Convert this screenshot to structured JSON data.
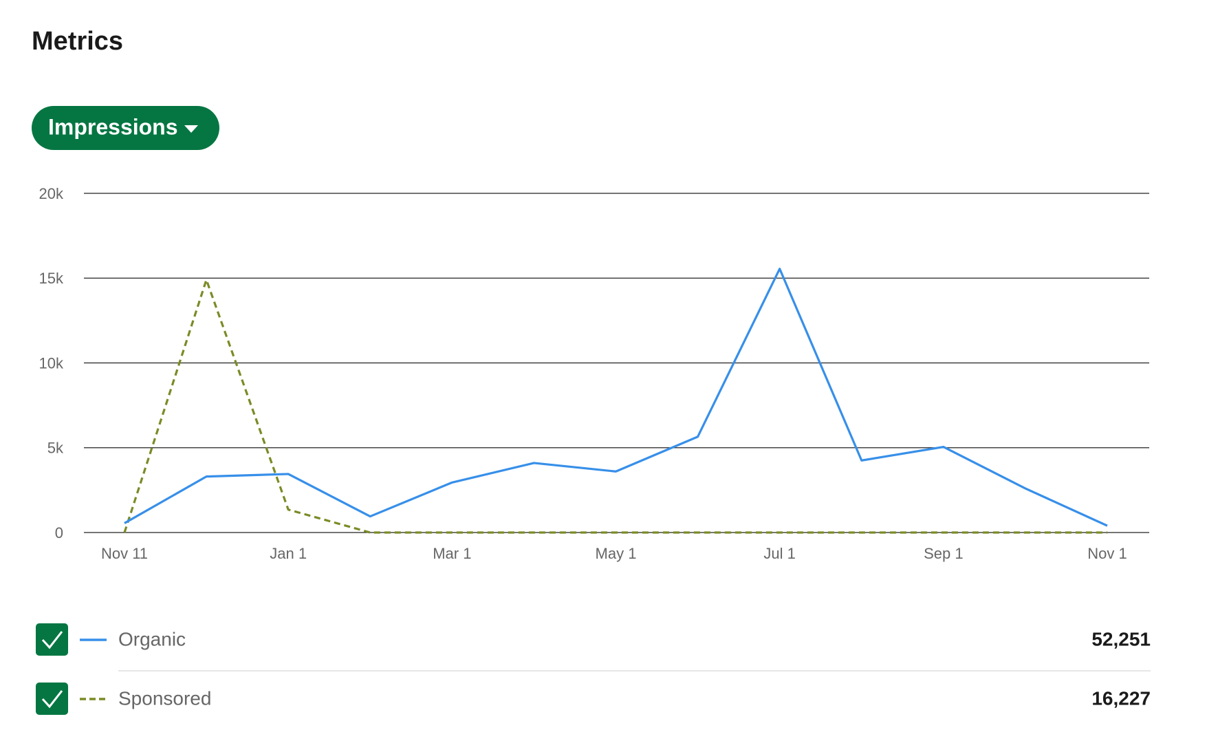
{
  "chart_data": {
    "type": "line",
    "title": "Metrics",
    "metric": "Impressions",
    "categories": [
      "Nov 11",
      null,
      "Jan 1",
      null,
      "Mar 1",
      null,
      "May 1",
      null,
      "Jul 1",
      null,
      "Sep 1",
      null,
      "Nov 1"
    ],
    "series": [
      {
        "name": "Organic",
        "color": "#378fe9",
        "dash": false,
        "total": "52,251",
        "values": [
          550,
          3300,
          3450,
          950,
          2950,
          4100,
          3600,
          5650,
          15550,
          4250,
          5050,
          2600,
          400
        ]
      },
      {
        "name": "Sponsored",
        "color": "#7a8b26",
        "dash": true,
        "total": "16,227",
        "values": [
          0,
          14900,
          1350,
          0,
          0,
          0,
          0,
          0,
          0,
          0,
          0,
          0,
          0
        ]
      }
    ],
    "ylim": [
      0,
      20000
    ],
    "yticks": [
      0,
      {
        "value": 5000,
        "label": "5k"
      },
      {
        "value": 10000,
        "label": "10k"
      },
      {
        "value": 15000,
        "label": "15k"
      },
      {
        "value": 20000,
        "label": "20k"
      }
    ],
    "grid": true
  }
}
